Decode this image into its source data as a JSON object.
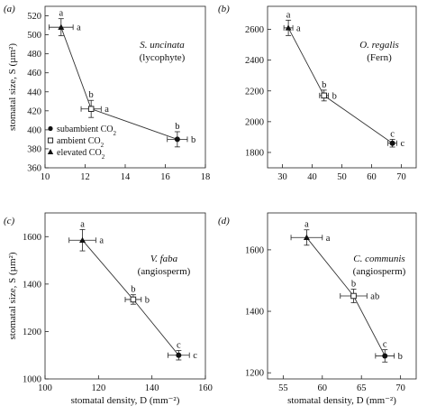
{
  "chart_data": [
    {
      "panel_label": "(a)",
      "type": "scatter",
      "title": "S. uncinata",
      "subtitle": "(lycophyte)",
      "ylabel": "stomatal size, S (µm²)",
      "xlabel": "",
      "xlim": [
        10,
        18
      ],
      "ylim": [
        360,
        530
      ],
      "xticks": [
        10,
        12,
        14,
        16,
        18
      ],
      "yticks": [
        360,
        380,
        400,
        420,
        440,
        460,
        480,
        500,
        520
      ],
      "points": [
        {
          "treatment": "elevated CO2",
          "x": 10.8,
          "y": 508,
          "xerr": 0.6,
          "yerr": 9,
          "letter_x": "a",
          "letter_y": "a"
        },
        {
          "treatment": "ambient CO2",
          "x": 12.3,
          "y": 422,
          "xerr": 0.5,
          "yerr": 9,
          "letter_x": "a",
          "letter_y": "b"
        },
        {
          "treatment": "subambient CO2",
          "x": 16.6,
          "y": 390,
          "xerr": 0.5,
          "yerr": 8,
          "letter_x": "b",
          "letter_y": "b"
        }
      ],
      "legend": {
        "position": "lower-left",
        "entries": [
          {
            "label": "subambient CO",
            "sub": "2",
            "marker": "filled-circle"
          },
          {
            "label": "ambient CO",
            "sub": "2",
            "marker": "open-square"
          },
          {
            "label": "elevated CO",
            "sub": "2",
            "marker": "filled-triangle"
          }
        ]
      }
    },
    {
      "panel_label": "(b)",
      "type": "scatter",
      "title": "O. regalis",
      "subtitle": "(Fern)",
      "ylabel": "",
      "xlabel": "",
      "xlim": [
        25,
        75
      ],
      "ylim": [
        1700,
        2750
      ],
      "xticks": [
        30,
        40,
        50,
        60,
        70
      ],
      "yticks": [
        1800,
        2000,
        2200,
        2400,
        2600
      ],
      "points": [
        {
          "treatment": "elevated CO2",
          "x": 32,
          "y": 2610,
          "xerr": 1.5,
          "yerr": 50,
          "letter_x": "a",
          "letter_y": "a"
        },
        {
          "treatment": "ambient CO2",
          "x": 44,
          "y": 2170,
          "xerr": 1.5,
          "yerr": 35,
          "letter_x": "b",
          "letter_y": "b"
        },
        {
          "treatment": "subambient CO2",
          "x": 67,
          "y": 1860,
          "xerr": 1.5,
          "yerr": 25,
          "letter_x": "c",
          "letter_y": "c"
        }
      ]
    },
    {
      "panel_label": "(c)",
      "type": "scatter",
      "title": "V. faba",
      "subtitle": "(angiosperm)",
      "ylabel": "stomatal size, S (µm²)",
      "xlabel": "stomatal density, D (mm⁻²)",
      "xlim": [
        100,
        160
      ],
      "ylim": [
        1000,
        1700
      ],
      "xticks": [
        100,
        120,
        140,
        160
      ],
      "yticks": [
        1000,
        1200,
        1400,
        1600
      ],
      "points": [
        {
          "treatment": "elevated CO2",
          "x": 114,
          "y": 1585,
          "xerr": 5,
          "yerr": 45,
          "letter_x": "a",
          "letter_y": "a"
        },
        {
          "treatment": "ambient CO2",
          "x": 133,
          "y": 1335,
          "xerr": 3,
          "yerr": 20,
          "letter_x": "b",
          "letter_y": "b"
        },
        {
          "treatment": "subambient CO2",
          "x": 150,
          "y": 1100,
          "xerr": 4,
          "yerr": 20,
          "letter_x": "c",
          "letter_y": "c"
        }
      ]
    },
    {
      "panel_label": "(d)",
      "type": "scatter",
      "title": "C. communis",
      "subtitle": "(angiosperm)",
      "ylabel": "",
      "xlabel": "stomatal density, D (mm⁻²)",
      "xlim": [
        53,
        72
      ],
      "ylim": [
        1180,
        1720
      ],
      "xticks": [
        55,
        60,
        65,
        70
      ],
      "yticks": [
        1200,
        1400,
        1600
      ],
      "points": [
        {
          "treatment": "elevated CO2",
          "x": 58,
          "y": 1640,
          "xerr": 2,
          "yerr": 25,
          "letter_x": "a",
          "letter_y": "a"
        },
        {
          "treatment": "ambient CO2",
          "x": 64,
          "y": 1450,
          "xerr": 1.7,
          "yerr": 22,
          "letter_x": "ab",
          "letter_y": "b"
        },
        {
          "treatment": "subambient CO2",
          "x": 68,
          "y": 1255,
          "xerr": 1.2,
          "yerr": 20,
          "letter_x": "b",
          "letter_y": "c"
        }
      ]
    }
  ]
}
